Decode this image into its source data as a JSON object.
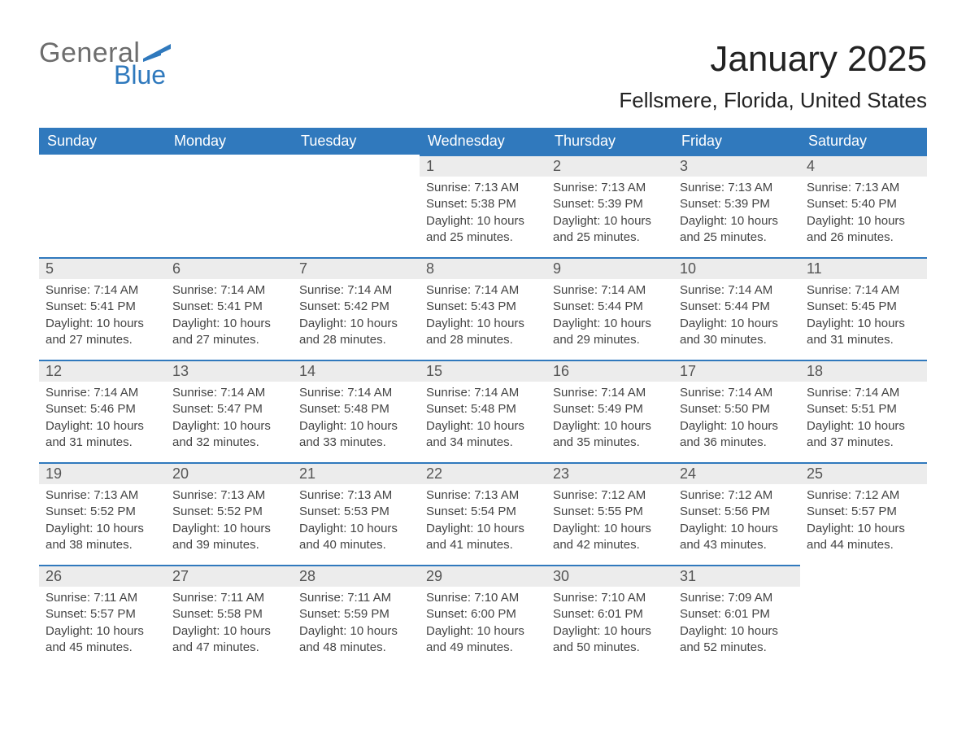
{
  "brand": {
    "word1": "General",
    "word2": "Blue"
  },
  "title": "January 2025",
  "location": "Fellsmere, Florida, United States",
  "colors": {
    "header_bg": "#3079bd",
    "header_text": "#ffffff",
    "daynum_bg": "#ececec",
    "border_blue": "#3079bd",
    "brand_gray": "#6d6d6d",
    "brand_blue": "#2f79bd",
    "page_bg": "#ffffff"
  },
  "weekdays": [
    "Sunday",
    "Monday",
    "Tuesday",
    "Wednesday",
    "Thursday",
    "Friday",
    "Saturday"
  ],
  "weeks": [
    [
      {
        "empty": true
      },
      {
        "empty": true
      },
      {
        "empty": true
      },
      {
        "day": "1",
        "sunrise": "Sunrise: 7:13 AM",
        "sunset": "Sunset: 5:38 PM",
        "dl1": "Daylight: 10 hours",
        "dl2": "and 25 minutes."
      },
      {
        "day": "2",
        "sunrise": "Sunrise: 7:13 AM",
        "sunset": "Sunset: 5:39 PM",
        "dl1": "Daylight: 10 hours",
        "dl2": "and 25 minutes."
      },
      {
        "day": "3",
        "sunrise": "Sunrise: 7:13 AM",
        "sunset": "Sunset: 5:39 PM",
        "dl1": "Daylight: 10 hours",
        "dl2": "and 25 minutes."
      },
      {
        "day": "4",
        "sunrise": "Sunrise: 7:13 AM",
        "sunset": "Sunset: 5:40 PM",
        "dl1": "Daylight: 10 hours",
        "dl2": "and 26 minutes."
      }
    ],
    [
      {
        "day": "5",
        "sunrise": "Sunrise: 7:14 AM",
        "sunset": "Sunset: 5:41 PM",
        "dl1": "Daylight: 10 hours",
        "dl2": "and 27 minutes."
      },
      {
        "day": "6",
        "sunrise": "Sunrise: 7:14 AM",
        "sunset": "Sunset: 5:41 PM",
        "dl1": "Daylight: 10 hours",
        "dl2": "and 27 minutes."
      },
      {
        "day": "7",
        "sunrise": "Sunrise: 7:14 AM",
        "sunset": "Sunset: 5:42 PM",
        "dl1": "Daylight: 10 hours",
        "dl2": "and 28 minutes."
      },
      {
        "day": "8",
        "sunrise": "Sunrise: 7:14 AM",
        "sunset": "Sunset: 5:43 PM",
        "dl1": "Daylight: 10 hours",
        "dl2": "and 28 minutes."
      },
      {
        "day": "9",
        "sunrise": "Sunrise: 7:14 AM",
        "sunset": "Sunset: 5:44 PM",
        "dl1": "Daylight: 10 hours",
        "dl2": "and 29 minutes."
      },
      {
        "day": "10",
        "sunrise": "Sunrise: 7:14 AM",
        "sunset": "Sunset: 5:44 PM",
        "dl1": "Daylight: 10 hours",
        "dl2": "and 30 minutes."
      },
      {
        "day": "11",
        "sunrise": "Sunrise: 7:14 AM",
        "sunset": "Sunset: 5:45 PM",
        "dl1": "Daylight: 10 hours",
        "dl2": "and 31 minutes."
      }
    ],
    [
      {
        "day": "12",
        "sunrise": "Sunrise: 7:14 AM",
        "sunset": "Sunset: 5:46 PM",
        "dl1": "Daylight: 10 hours",
        "dl2": "and 31 minutes."
      },
      {
        "day": "13",
        "sunrise": "Sunrise: 7:14 AM",
        "sunset": "Sunset: 5:47 PM",
        "dl1": "Daylight: 10 hours",
        "dl2": "and 32 minutes."
      },
      {
        "day": "14",
        "sunrise": "Sunrise: 7:14 AM",
        "sunset": "Sunset: 5:48 PM",
        "dl1": "Daylight: 10 hours",
        "dl2": "and 33 minutes."
      },
      {
        "day": "15",
        "sunrise": "Sunrise: 7:14 AM",
        "sunset": "Sunset: 5:48 PM",
        "dl1": "Daylight: 10 hours",
        "dl2": "and 34 minutes."
      },
      {
        "day": "16",
        "sunrise": "Sunrise: 7:14 AM",
        "sunset": "Sunset: 5:49 PM",
        "dl1": "Daylight: 10 hours",
        "dl2": "and 35 minutes."
      },
      {
        "day": "17",
        "sunrise": "Sunrise: 7:14 AM",
        "sunset": "Sunset: 5:50 PM",
        "dl1": "Daylight: 10 hours",
        "dl2": "and 36 minutes."
      },
      {
        "day": "18",
        "sunrise": "Sunrise: 7:14 AM",
        "sunset": "Sunset: 5:51 PM",
        "dl1": "Daylight: 10 hours",
        "dl2": "and 37 minutes."
      }
    ],
    [
      {
        "day": "19",
        "sunrise": "Sunrise: 7:13 AM",
        "sunset": "Sunset: 5:52 PM",
        "dl1": "Daylight: 10 hours",
        "dl2": "and 38 minutes."
      },
      {
        "day": "20",
        "sunrise": "Sunrise: 7:13 AM",
        "sunset": "Sunset: 5:52 PM",
        "dl1": "Daylight: 10 hours",
        "dl2": "and 39 minutes."
      },
      {
        "day": "21",
        "sunrise": "Sunrise: 7:13 AM",
        "sunset": "Sunset: 5:53 PM",
        "dl1": "Daylight: 10 hours",
        "dl2": "and 40 minutes."
      },
      {
        "day": "22",
        "sunrise": "Sunrise: 7:13 AM",
        "sunset": "Sunset: 5:54 PM",
        "dl1": "Daylight: 10 hours",
        "dl2": "and 41 minutes."
      },
      {
        "day": "23",
        "sunrise": "Sunrise: 7:12 AM",
        "sunset": "Sunset: 5:55 PM",
        "dl1": "Daylight: 10 hours",
        "dl2": "and 42 minutes."
      },
      {
        "day": "24",
        "sunrise": "Sunrise: 7:12 AM",
        "sunset": "Sunset: 5:56 PM",
        "dl1": "Daylight: 10 hours",
        "dl2": "and 43 minutes."
      },
      {
        "day": "25",
        "sunrise": "Sunrise: 7:12 AM",
        "sunset": "Sunset: 5:57 PM",
        "dl1": "Daylight: 10 hours",
        "dl2": "and 44 minutes."
      }
    ],
    [
      {
        "day": "26",
        "sunrise": "Sunrise: 7:11 AM",
        "sunset": "Sunset: 5:57 PM",
        "dl1": "Daylight: 10 hours",
        "dl2": "and 45 minutes."
      },
      {
        "day": "27",
        "sunrise": "Sunrise: 7:11 AM",
        "sunset": "Sunset: 5:58 PM",
        "dl1": "Daylight: 10 hours",
        "dl2": "and 47 minutes."
      },
      {
        "day": "28",
        "sunrise": "Sunrise: 7:11 AM",
        "sunset": "Sunset: 5:59 PM",
        "dl1": "Daylight: 10 hours",
        "dl2": "and 48 minutes."
      },
      {
        "day": "29",
        "sunrise": "Sunrise: 7:10 AM",
        "sunset": "Sunset: 6:00 PM",
        "dl1": "Daylight: 10 hours",
        "dl2": "and 49 minutes."
      },
      {
        "day": "30",
        "sunrise": "Sunrise: 7:10 AM",
        "sunset": "Sunset: 6:01 PM",
        "dl1": "Daylight: 10 hours",
        "dl2": "and 50 minutes."
      },
      {
        "day": "31",
        "sunrise": "Sunrise: 7:09 AM",
        "sunset": "Sunset: 6:01 PM",
        "dl1": "Daylight: 10 hours",
        "dl2": "and 52 minutes."
      },
      {
        "empty": true
      }
    ]
  ]
}
